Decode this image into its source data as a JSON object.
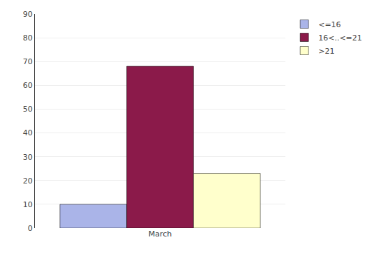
{
  "chart_data": {
    "type": "bar",
    "categories": [
      "March"
    ],
    "series": [
      {
        "name": "<=16",
        "values": [
          10
        ],
        "color": "#aab4e8"
      },
      {
        "name": "16<..<=21",
        "values": [
          68
        ],
        "color": "#8b1a4a"
      },
      {
        "name": ">21",
        "values": [
          23
        ],
        "color": "#ffffcc"
      }
    ],
    "ylim": [
      0,
      90
    ],
    "yticks": [
      0,
      10,
      20,
      30,
      40,
      50,
      60,
      70,
      80,
      90
    ],
    "grid": true,
    "legend": "right"
  }
}
